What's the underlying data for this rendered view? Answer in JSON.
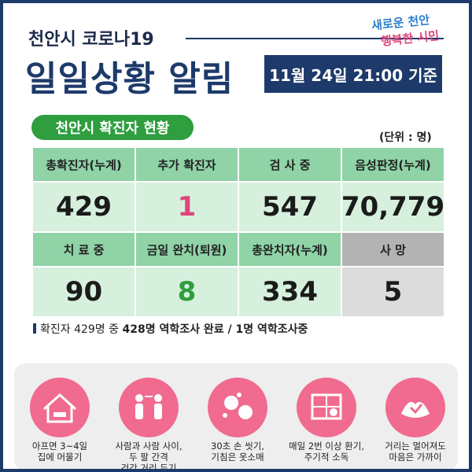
{
  "header": {
    "title": "천안시 코로나19",
    "headline": "일일상황 알림",
    "date_badge": "11월 24일 21:00 기준",
    "logo_top": "새로운 천안",
    "logo_bottom": "행복한 시민"
  },
  "section": {
    "label": "천안시 확진자 현황",
    "unit": "(단위 : 명)"
  },
  "table": {
    "rows": [
      {
        "headers": [
          "총확진자(누계)",
          "추가 확진자",
          "검 사 중",
          "음성판정(누계)"
        ],
        "values": [
          "429",
          "1",
          "547",
          "70,779"
        ]
      },
      {
        "headers": [
          "치 료 중",
          "금일 완치(퇴원)",
          "총완치자(누계)",
          "사  망"
        ],
        "values": [
          "90",
          "8",
          "334",
          "5"
        ]
      }
    ]
  },
  "note": {
    "text": "확진자 429명 중",
    "bold": "428명 역학조사 완료 / 1명 역학조사중"
  },
  "tips": [
    {
      "lines": [
        "아프면 3~4일",
        "집에 머물기"
      ]
    },
    {
      "lines": [
        "사람과 사람 사이,",
        "두 팔 간격",
        "건강 거리 두기"
      ]
    },
    {
      "lines": [
        "30초 손 씻기,",
        "기침은 옷소매"
      ]
    },
    {
      "lines": [
        "매일 2번 이상 환기,",
        "주기적 소독"
      ]
    },
    {
      "lines": [
        "거리는 멀어져도",
        "마음은 가까이"
      ]
    }
  ]
}
